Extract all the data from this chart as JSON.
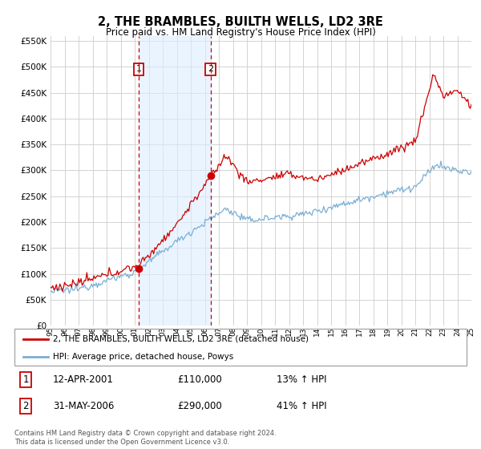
{
  "title": "2, THE BRAMBLES, BUILTH WELLS, LD2 3RE",
  "subtitle": "Price paid vs. HM Land Registry's House Price Index (HPI)",
  "ylim": [
    0,
    560000
  ],
  "yticks": [
    0,
    50000,
    100000,
    150000,
    200000,
    250000,
    300000,
    350000,
    400000,
    450000,
    500000,
    550000
  ],
  "sale1_year": 2001.28,
  "sale1_value": 110000,
  "sale1_label": "1",
  "sale1_date_str": "12-APR-2001",
  "sale1_price_str": "£110,000",
  "sale1_pct": "13% ↑ HPI",
  "sale2_year": 2006.41,
  "sale2_value": 290000,
  "sale2_label": "2",
  "sale2_date_str": "31-MAY-2006",
  "sale2_price_str": "£290,000",
  "sale2_pct": "41% ↑ HPI",
  "red_line_color": "#cc0000",
  "blue_line_color": "#7aafd4",
  "shade_color": "#ddeeff",
  "grid_color": "#cccccc",
  "background_color": "#ffffff",
  "legend_label_red": "2, THE BRAMBLES, BUILTH WELLS, LD2 3RE (detached house)",
  "legend_label_blue": "HPI: Average price, detached house, Powys",
  "footnote": "Contains HM Land Registry data © Crown copyright and database right 2024.\nThis data is licensed under the Open Government Licence v3.0.",
  "x_start_year": 1995,
  "x_end_year": 2025
}
